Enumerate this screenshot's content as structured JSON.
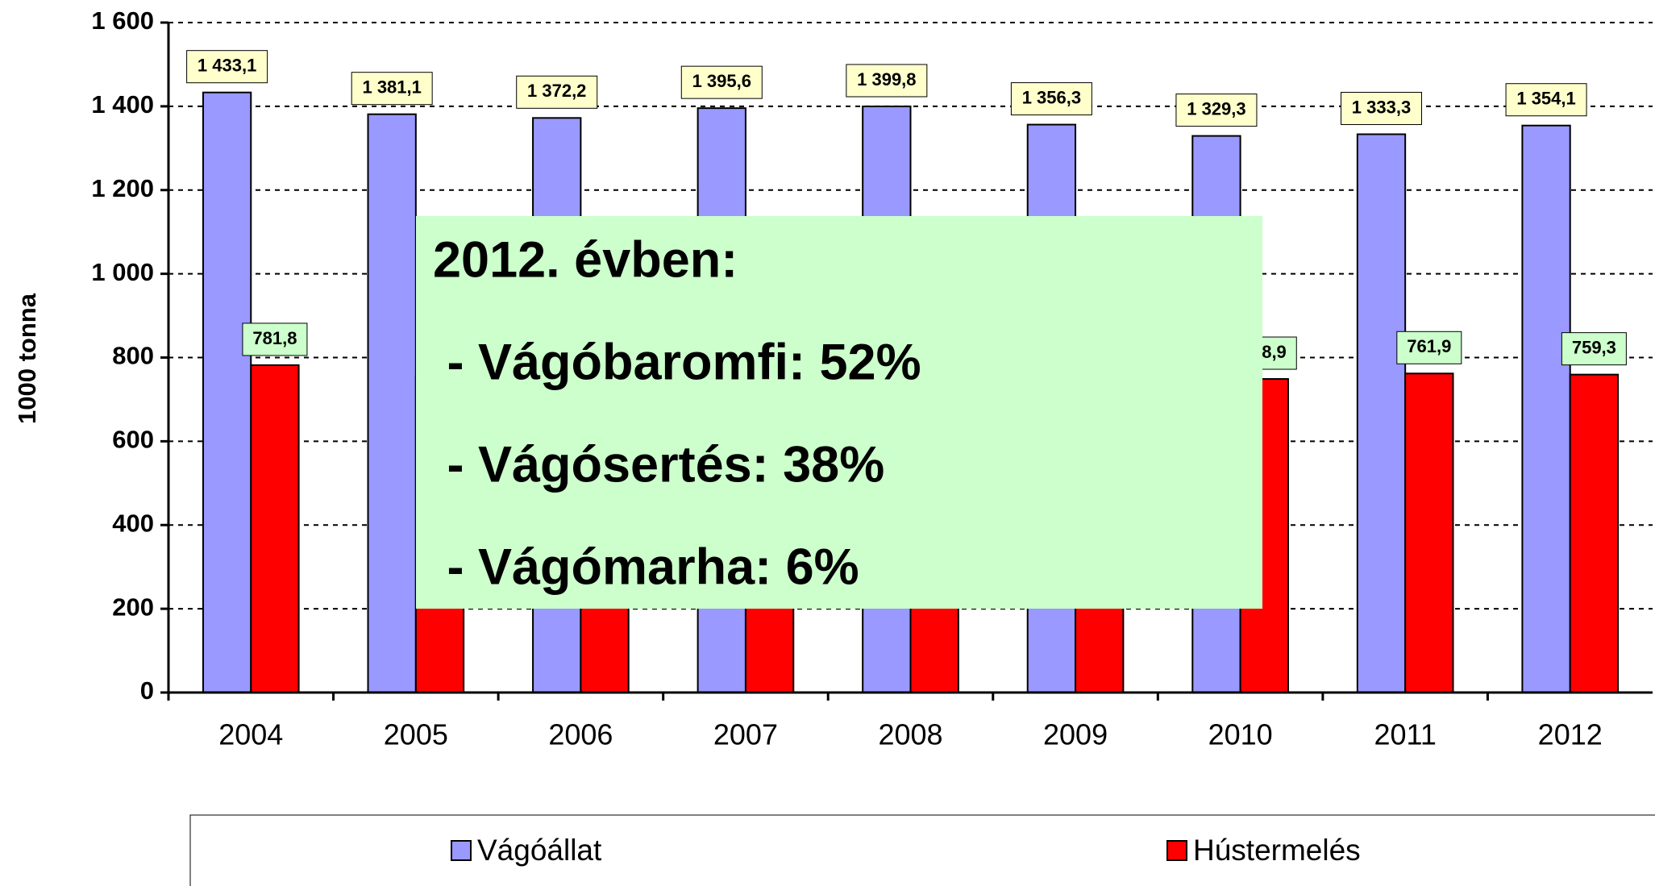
{
  "chart_data": {
    "type": "bar",
    "y_label": "1000 tonna",
    "categories": [
      "2004",
      "2005",
      "2006",
      "2007",
      "2008",
      "2009",
      "2010",
      "2011",
      "2012"
    ],
    "series": [
      {
        "name": "Vágóállat",
        "color": "#9999ff",
        "label_bg": "#ffffcc",
        "values": [
          1433.1,
          1381.1,
          1372.2,
          1395.6,
          1399.8,
          1356.3,
          1329.3,
          1333.3,
          1354.1
        ],
        "value_labels": [
          "1 433,1",
          "1 381,1",
          "1 372,2",
          "1 395,6",
          "1 399,8",
          "1 356,3",
          "1 329,3",
          "1 333,3",
          "1 354,1"
        ]
      },
      {
        "name": "Hústermelés",
        "color": "#ff0000",
        "label_bg": "#ccffcc",
        "values": [
          781.8,
          755,
          765,
          780,
          790,
          760,
          748.9,
          761.9,
          759.3
        ],
        "value_labels": [
          "781,8",
          null,
          null,
          null,
          null,
          null,
          "748,9",
          "761,9",
          "759,3"
        ]
      }
    ],
    "ylim": [
      0,
      1600
    ],
    "yticks": [
      0,
      200,
      400,
      600,
      800,
      {
        "value": 1000,
        "label": "1 000"
      },
      {
        "value": 1200,
        "label": "1 200"
      },
      {
        "value": 1400,
        "label": "1 400"
      },
      {
        "value": 1600,
        "label": "1 600"
      }
    ],
    "grid": true,
    "legend": "bottom",
    "annotation": {
      "title": "2012. évben:",
      "lines": [
        " - Vágóbaromfi: 52%",
        " - Vágósertés: 38%",
        " - Vágómarha: 6%"
      ],
      "color": "#ccffcc"
    }
  }
}
